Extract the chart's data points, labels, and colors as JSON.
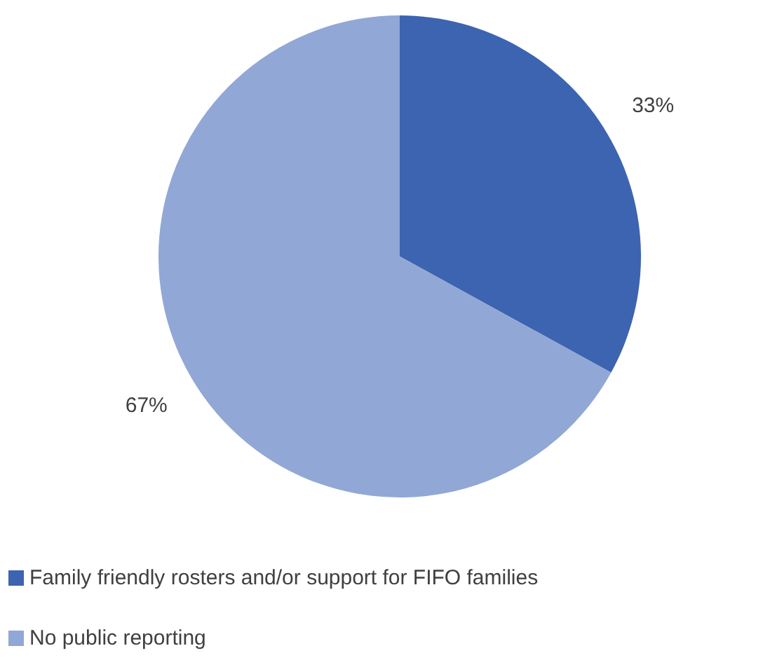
{
  "chart_data": {
    "type": "pie",
    "categories": [
      "Family friendly rosters and/or support for FIFO families",
      "No public reporting"
    ],
    "values": [
      33,
      67
    ],
    "colors": [
      "#3d64b0",
      "#91a7d6"
    ],
    "value_labels": [
      "33%",
      "67%"
    ],
    "legend": "bottom"
  }
}
